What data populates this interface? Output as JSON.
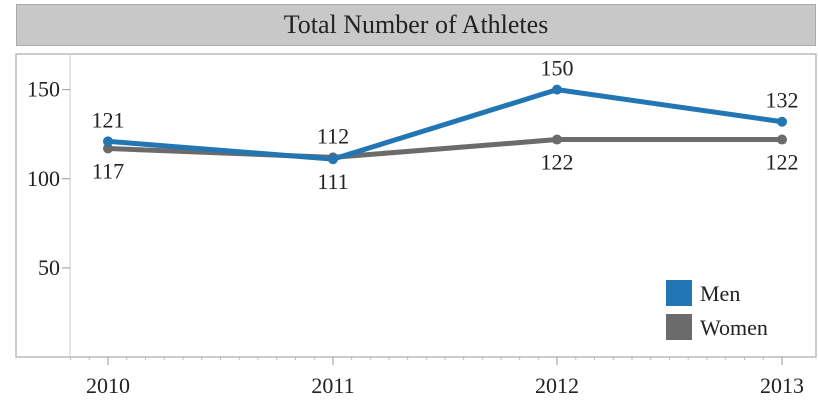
{
  "chart_data": {
    "type": "line",
    "title": "Total Number of Athletes",
    "categories": [
      "2010",
      "2011",
      "2012",
      "2013"
    ],
    "ylim": [
      0,
      170
    ],
    "yticks": [
      50,
      100,
      150
    ],
    "grid": false,
    "legend_placement": "bottom-right",
    "series": [
      {
        "name": "Men",
        "color": "#2276b4",
        "values": [
          121,
          111,
          150,
          132
        ],
        "labels": [
          "121",
          "111",
          "150",
          "132"
        ],
        "label_pos": [
          "above",
          "below",
          "above",
          "above"
        ]
      },
      {
        "name": "Women",
        "color": "#6b6b6b",
        "values": [
          117,
          112,
          122,
          122
        ],
        "labels": [
          "117",
          "112",
          "122",
          "122"
        ],
        "label_pos": [
          "below",
          "above",
          "below",
          "below"
        ]
      }
    ]
  }
}
